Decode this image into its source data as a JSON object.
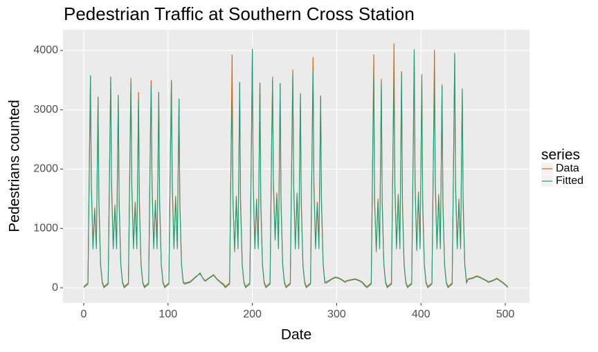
{
  "chart_data": {
    "type": "line",
    "title": "Pedestrian Traffic at Southern Cross Station",
    "x_label": "Date",
    "y_label": "Pedestrians counted",
    "legend_title": "series",
    "xlim": [
      -24.6,
      528.7
    ],
    "ylim": [
      -256,
      4350
    ],
    "xticks": [
      0,
      100,
      200,
      300,
      400,
      500
    ],
    "yticks": [
      0,
      1000,
      2000,
      3000,
      4000
    ],
    "grid": true,
    "x": [
      0,
      5,
      7,
      8,
      9,
      11,
      13,
      15,
      17,
      18,
      20,
      22,
      24,
      29,
      31,
      32,
      33,
      35,
      37,
      39,
      41,
      42,
      44,
      46,
      48,
      53,
      55,
      56,
      57,
      59,
      61,
      63,
      65,
      66,
      68,
      70,
      72,
      77,
      79,
      80,
      81,
      83,
      85,
      87,
      89,
      90,
      92,
      94,
      96,
      101,
      103,
      104,
      105,
      107,
      109,
      111,
      113,
      114,
      116,
      118,
      120,
      126,
      130,
      134,
      138,
      142,
      144,
      150,
      154,
      158,
      162,
      166,
      168,
      173,
      175,
      176,
      177,
      179,
      181,
      183,
      185,
      186,
      188,
      190,
      192,
      197,
      199,
      200,
      201,
      203,
      205,
      207,
      209,
      210,
      212,
      214,
      216,
      221,
      223,
      224,
      225,
      227,
      229,
      231,
      233,
      234,
      236,
      238,
      240,
      245,
      247,
      248,
      249,
      251,
      253,
      255,
      257,
      258,
      260,
      262,
      264,
      269,
      271,
      272,
      273,
      275,
      277,
      279,
      281,
      282,
      284,
      286,
      288,
      294,
      298,
      302,
      306,
      310,
      312,
      318,
      322,
      326,
      330,
      334,
      336,
      341,
      343,
      344,
      345,
      347,
      349,
      351,
      353,
      354,
      356,
      358,
      360,
      365,
      367,
      368,
      369,
      371,
      373,
      375,
      377,
      378,
      380,
      382,
      384,
      389,
      391,
      392,
      393,
      395,
      397,
      399,
      401,
      402,
      404,
      406,
      408,
      413,
      415,
      416,
      417,
      419,
      421,
      423,
      425,
      426,
      428,
      430,
      432,
      437,
      439,
      440,
      441,
      443,
      445,
      447,
      449,
      450,
      452,
      454,
      456,
      462,
      466,
      470,
      474,
      478,
      480,
      486,
      490,
      494,
      498,
      502,
      503
    ],
    "series": [
      {
        "name": "Data",
        "color": "#d95f02",
        "values": [
          20,
          80,
          2500,
          3580,
          1800,
          700,
          1350,
          700,
          3220,
          1500,
          400,
          100,
          20,
          80,
          2500,
          3560,
          1800,
          700,
          1400,
          700,
          3250,
          1500,
          400,
          100,
          20,
          80,
          2500,
          3540,
          1800,
          700,
          1450,
          700,
          3300,
          1500,
          400,
          100,
          20,
          80,
          2500,
          3500,
          1800,
          700,
          1480,
          700,
          3300,
          1500,
          400,
          100,
          20,
          80,
          2500,
          3500,
          1800,
          700,
          1550,
          700,
          3190,
          1500,
          400,
          100,
          80,
          100,
          150,
          200,
          230,
          150,
          120,
          180,
          220,
          150,
          100,
          60,
          20,
          80,
          2600,
          3930,
          1500,
          600,
          1550,
          700,
          3470,
          1500,
          400,
          100,
          20,
          80,
          2600,
          4000,
          1800,
          700,
          1500,
          700,
          3460,
          1500,
          400,
          100,
          20,
          80,
          2600,
          3560,
          1800,
          850,
          1600,
          700,
          3450,
          1500,
          400,
          100,
          20,
          80,
          2600,
          3680,
          1800,
          700,
          1600,
          700,
          3280,
          1500,
          400,
          100,
          20,
          80,
          2600,
          3890,
          1800,
          700,
          1450,
          700,
          3240,
          1500,
          400,
          100,
          100,
          150,
          180,
          170,
          140,
          100,
          120,
          140,
          150,
          130,
          100,
          40,
          20,
          80,
          2600,
          3930,
          1460,
          600,
          1500,
          700,
          3520,
          1500,
          400,
          100,
          20,
          80,
          2600,
          4120,
          1800,
          700,
          1580,
          700,
          3650,
          1500,
          400,
          100,
          20,
          80,
          2600,
          4000,
          1800,
          650,
          1620,
          700,
          3600,
          1500,
          400,
          100,
          20,
          80,
          2600,
          4010,
          1800,
          700,
          1580,
          700,
          3430,
          1500,
          400,
          100,
          20,
          80,
          2600,
          3960,
          1800,
          700,
          1500,
          700,
          3360,
          1500,
          400,
          100,
          150,
          170,
          200,
          180,
          150,
          120,
          100,
          130,
          160,
          120,
          80,
          30,
          20
        ]
      },
      {
        "name": "Fitted",
        "color": "#1b9e77",
        "values": [
          0,
          60,
          2400,
          3580,
          1700,
          650,
          1300,
          650,
          3220,
          1400,
          380,
          80,
          0,
          60,
          2400,
          3550,
          1700,
          650,
          1350,
          650,
          3250,
          1400,
          380,
          80,
          0,
          60,
          2400,
          3450,
          1700,
          650,
          1400,
          650,
          3180,
          1400,
          380,
          80,
          0,
          60,
          2400,
          3400,
          1700,
          650,
          1430,
          650,
          3300,
          1400,
          380,
          80,
          0,
          60,
          2400,
          3490,
          1700,
          650,
          1500,
          650,
          3180,
          1400,
          380,
          80,
          60,
          90,
          140,
          190,
          250,
          140,
          110,
          170,
          210,
          140,
          90,
          40,
          0,
          60,
          2500,
          3150,
          1450,
          650,
          1500,
          650,
          3460,
          1400,
          380,
          80,
          0,
          60,
          2500,
          4030,
          1700,
          650,
          1450,
          650,
          3460,
          1400,
          380,
          80,
          0,
          60,
          2500,
          3500,
          1700,
          800,
          1550,
          650,
          3440,
          1400,
          380,
          80,
          0,
          60,
          2500,
          3600,
          1700,
          650,
          1550,
          650,
          3270,
          1400,
          380,
          80,
          0,
          60,
          2500,
          3640,
          1700,
          650,
          1400,
          650,
          3230,
          1400,
          380,
          80,
          80,
          140,
          170,
          160,
          130,
          90,
          110,
          130,
          140,
          120,
          90,
          20,
          0,
          60,
          2500,
          3550,
          1450,
          650,
          1450,
          650,
          3460,
          1400,
          380,
          80,
          0,
          60,
          2500,
          3520,
          1700,
          650,
          1530,
          650,
          3620,
          1400,
          380,
          80,
          0,
          60,
          2500,
          4020,
          1700,
          620,
          1570,
          650,
          3590,
          1400,
          380,
          80,
          0,
          60,
          2500,
          3560,
          1700,
          650,
          1530,
          650,
          3400,
          1400,
          380,
          80,
          0,
          60,
          2500,
          3960,
          1700,
          650,
          1450,
          650,
          3350,
          1400,
          380,
          80,
          140,
          160,
          190,
          170,
          140,
          110,
          90,
          120,
          150,
          110,
          70,
          20,
          0
        ]
      }
    ]
  }
}
